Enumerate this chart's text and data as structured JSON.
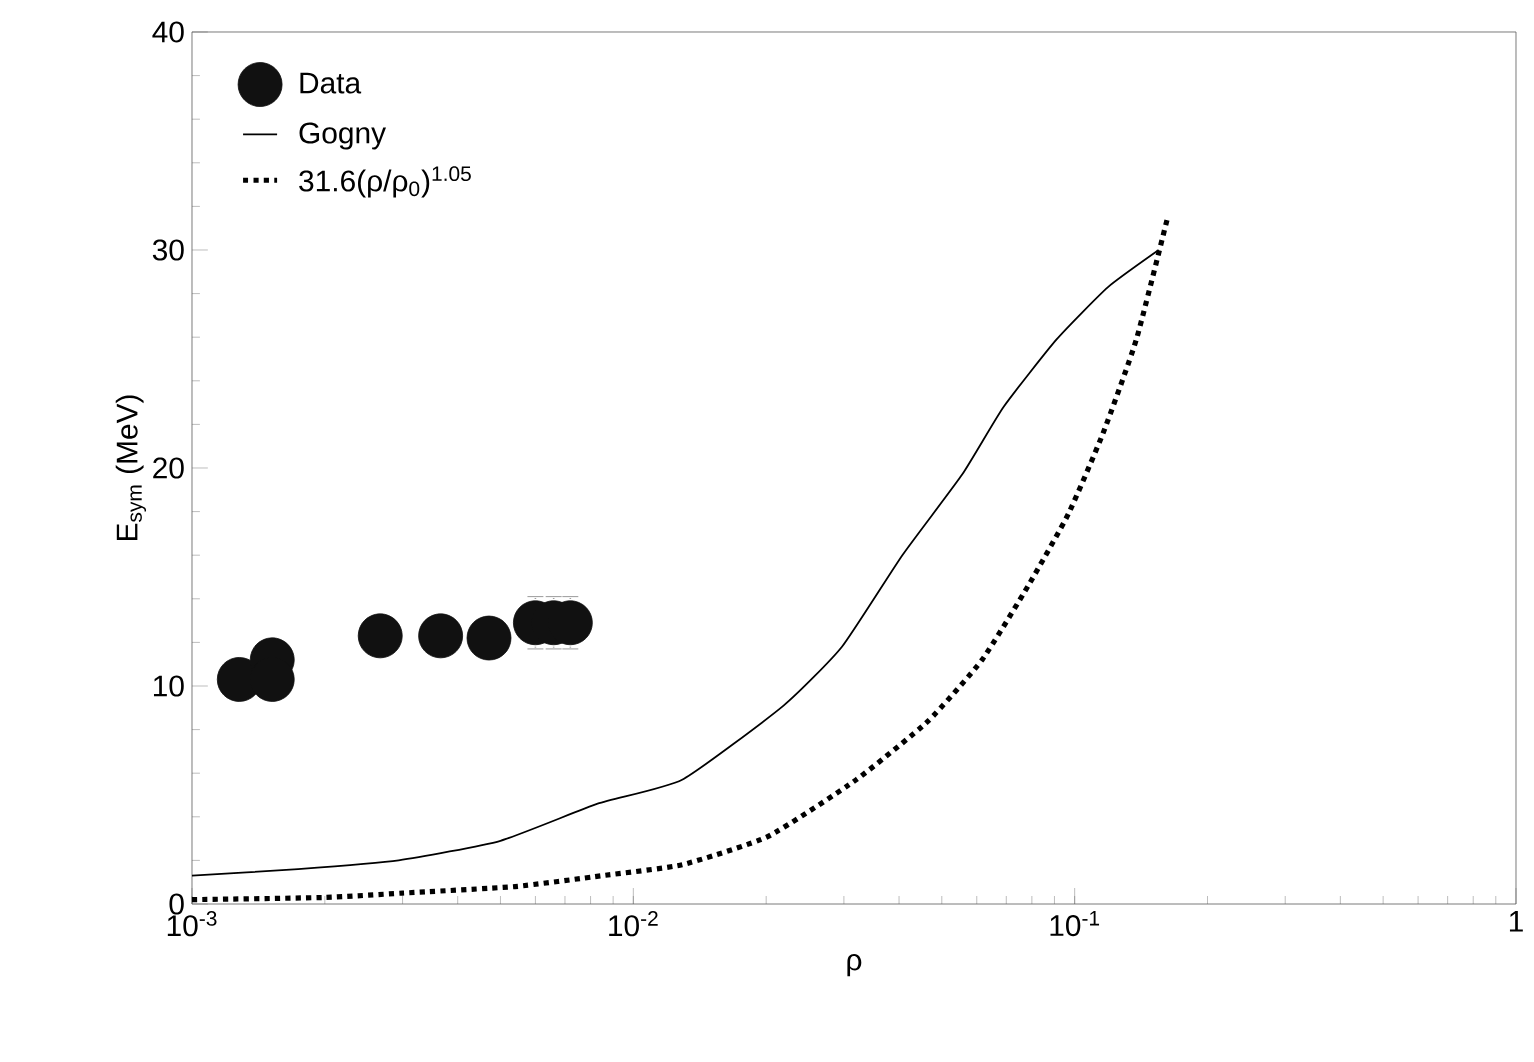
{
  "chart_data": {
    "type": "line",
    "xlabel": "ρ",
    "ylabel": "E$_{sym}$ (MeV)",
    "log": "x",
    "xlim": [
      0.001,
      1
    ],
    "ylim": [
      0,
      40
    ],
    "xticks": [
      {
        "value": 0.001,
        "label": "10$^{-3}$"
      },
      {
        "value": 0.01,
        "label": "10$^{-2}$"
      },
      {
        "value": 0.1,
        "label": "10$^{-1}$"
      },
      1
    ],
    "yticks": [
      0,
      10,
      20,
      30,
      40
    ],
    "grid": false,
    "legend": "top left",
    "series": [
      {
        "name": "Data",
        "type": "scatter",
        "marker": "circle",
        "color": "#111111",
        "x": [
          0.00128,
          0.00152,
          0.00152,
          0.00267,
          0.00366,
          0.00471,
          0.006,
          0.0066,
          0.0072
        ],
        "values": [
          10.3,
          11.2,
          10.3,
          12.3,
          12.3,
          12.2,
          12.9,
          12.9,
          12.9
        ],
        "errors": [
          null,
          null,
          null,
          null,
          null,
          null,
          1.2,
          1.2,
          1.2
        ]
      },
      {
        "name": "Gogny",
        "marker": "none",
        "line_style": "solid",
        "color": "#000000",
        "x": [
          0.001,
          0.00174,
          0.00294,
          0.005,
          0.0083,
          0.0129,
          0.0219,
          0.0297,
          0.0407,
          0.0556,
          0.069,
          0.091,
          0.119,
          0.155
        ],
        "values": [
          1.3,
          1.6,
          2.0,
          2.9,
          4.6,
          5.7,
          9.1,
          11.8,
          16.0,
          19.7,
          22.8,
          25.9,
          28.3,
          30.0
        ]
      },
      {
        "name": "31.6(ρ/ρ$_{0}$)$^{1.05}$",
        "marker": "none",
        "line_style": "dotted",
        "color": "#000000",
        "x": [
          0.001,
          0.002,
          0.003,
          0.0054,
          0.0085,
          0.0129,
          0.0202,
          0.032,
          0.0466,
          0.0617,
          0.0785,
          0.0968,
          0.116,
          0.138,
          0.162
        ],
        "values": [
          0.2,
          0.3,
          0.5,
          0.8,
          1.3,
          1.8,
          3.1,
          5.7,
          8.4,
          11.2,
          14.6,
          17.9,
          21.6,
          25.9,
          31.4
        ]
      }
    ]
  }
}
